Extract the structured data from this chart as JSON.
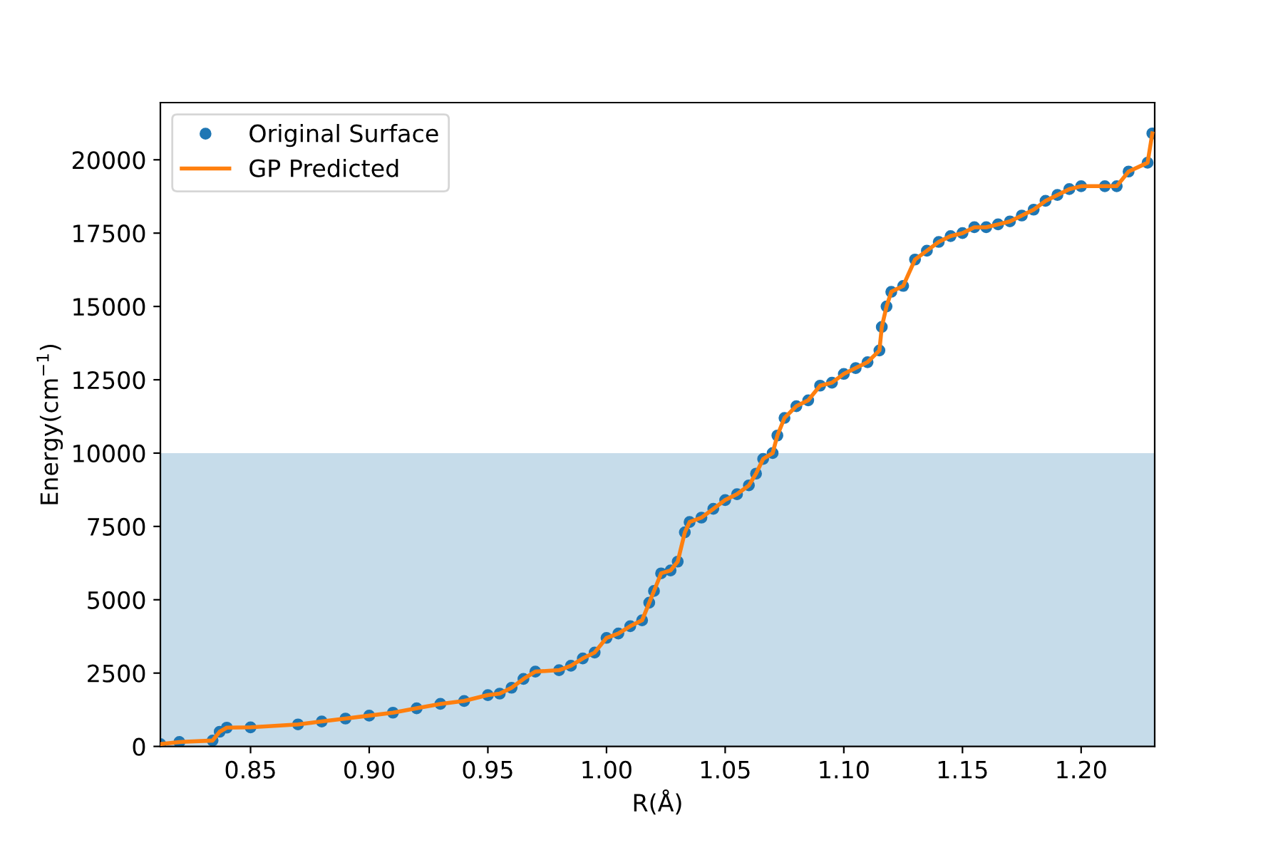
{
  "chart_data": {
    "type": "scatter",
    "xlabel": "R(Å)",
    "ylabel": "Energy(cm$^{−1}$)",
    "xlim": [
      0.812,
      1.231
    ],
    "ylim": [
      0,
      21950
    ],
    "xticks": [
      {
        "value": 0.85,
        "label": "0.85"
      },
      {
        "value": 0.9,
        "label": "0.90"
      },
      {
        "value": 0.95,
        "label": "0.95"
      },
      {
        "value": 1.0,
        "label": "1.00"
      },
      {
        "value": 1.05,
        "label": "1.05"
      },
      {
        "value": 1.1,
        "label": "1.10"
      },
      {
        "value": 1.15,
        "label": "1.15"
      },
      {
        "value": 1.2,
        "label": "1.20"
      }
    ],
    "yticks": [
      0,
      2500,
      5000,
      7500,
      10000,
      12500,
      15000,
      17500,
      20000
    ],
    "grid": false,
    "legend": "top left",
    "bands": [
      {
        "axis": "y",
        "from": 0,
        "to": 10000,
        "color": "#c6dcea"
      }
    ],
    "series": [
      {
        "name": "Original Surface",
        "marker": "circle",
        "color": "#1f77b4",
        "x": [
          0.812,
          0.82,
          0.834,
          0.837,
          0.84,
          0.85,
          0.87,
          0.88,
          0.89,
          0.9,
          0.91,
          0.92,
          0.93,
          0.94,
          0.95,
          0.955,
          0.96,
          0.965,
          0.97,
          0.98,
          0.985,
          0.99,
          0.995,
          1.0,
          1.005,
          1.01,
          1.015,
          1.018,
          1.02,
          1.023,
          1.027,
          1.03,
          1.033,
          1.035,
          1.04,
          1.045,
          1.05,
          1.055,
          1.06,
          1.063,
          1.066,
          1.07,
          1.072,
          1.075,
          1.08,
          1.085,
          1.09,
          1.095,
          1.1,
          1.105,
          1.11,
          1.115,
          1.116,
          1.118,
          1.12,
          1.125,
          1.13,
          1.135,
          1.14,
          1.145,
          1.15,
          1.155,
          1.16,
          1.165,
          1.17,
          1.175,
          1.18,
          1.185,
          1.19,
          1.195,
          1.2,
          1.21,
          1.215,
          1.22,
          1.228,
          1.23
        ],
        "values": [
          80,
          150,
          200,
          500,
          640,
          650,
          750,
          850,
          950,
          1050,
          1150,
          1300,
          1450,
          1550,
          1750,
          1800,
          2000,
          2300,
          2550,
          2600,
          2750,
          3000,
          3200,
          3700,
          3850,
          4100,
          4300,
          4900,
          5300,
          5900,
          6000,
          6300,
          7300,
          7650,
          7800,
          8100,
          8400,
          8600,
          8900,
          9300,
          9800,
          10000,
          10600,
          11200,
          11600,
          11800,
          12300,
          12400,
          12700,
          12900,
          13100,
          13500,
          14300,
          15000,
          15500,
          15700,
          16600,
          16900,
          17200,
          17400,
          17500,
          17700,
          17700,
          17800,
          17900,
          18100,
          18300,
          18600,
          18800,
          19000,
          19100,
          19100,
          19100,
          19600,
          19900,
          20900
        ]
      },
      {
        "name": "GP Predicted",
        "type": "line",
        "marker": "none",
        "line_style": "solid",
        "color": "#ff7f0e",
        "x": [
          0.812,
          0.82,
          0.834,
          0.837,
          0.84,
          0.85,
          0.87,
          0.88,
          0.89,
          0.9,
          0.91,
          0.92,
          0.93,
          0.94,
          0.95,
          0.955,
          0.96,
          0.965,
          0.97,
          0.98,
          0.985,
          0.99,
          0.995,
          1.0,
          1.005,
          1.01,
          1.015,
          1.018,
          1.02,
          1.023,
          1.027,
          1.03,
          1.033,
          1.035,
          1.04,
          1.045,
          1.05,
          1.055,
          1.06,
          1.063,
          1.066,
          1.07,
          1.072,
          1.075,
          1.08,
          1.085,
          1.09,
          1.095,
          1.1,
          1.105,
          1.11,
          1.115,
          1.116,
          1.118,
          1.12,
          1.125,
          1.13,
          1.135,
          1.14,
          1.145,
          1.15,
          1.155,
          1.16,
          1.165,
          1.17,
          1.175,
          1.18,
          1.185,
          1.19,
          1.195,
          1.2,
          1.21,
          1.215,
          1.22,
          1.228,
          1.23
        ],
        "values": [
          80,
          150,
          200,
          500,
          640,
          650,
          750,
          850,
          950,
          1050,
          1150,
          1300,
          1450,
          1550,
          1750,
          1800,
          2000,
          2300,
          2550,
          2600,
          2750,
          3000,
          3200,
          3700,
          3850,
          4100,
          4300,
          4900,
          5300,
          5900,
          6000,
          6300,
          7300,
          7650,
          7800,
          8100,
          8400,
          8600,
          8900,
          9300,
          9800,
          10000,
          10600,
          11200,
          11600,
          11800,
          12300,
          12400,
          12700,
          12900,
          13100,
          13500,
          14300,
          15000,
          15500,
          15700,
          16600,
          16900,
          17200,
          17400,
          17500,
          17700,
          17700,
          17800,
          17900,
          18100,
          18300,
          18600,
          18800,
          19000,
          19100,
          19100,
          19100,
          19600,
          19900,
          20900
        ]
      }
    ]
  }
}
